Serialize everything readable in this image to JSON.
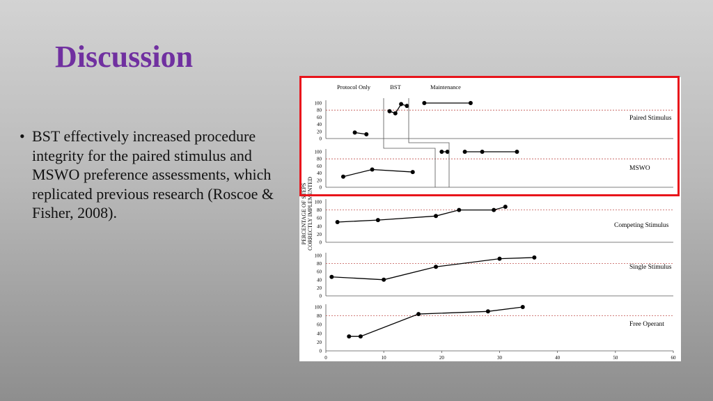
{
  "slide": {
    "title": "Discussion",
    "bullets": [
      "BST effectively increased procedure integrity for the paired stimulus and MSWO preference assessments, which replicated previous research (Roscoe & Fisher, 2008)."
    ]
  },
  "colors": {
    "title": "#7030a0",
    "highlight_box": "#e8141b",
    "criterion_line": "#c0504d",
    "data": "#000000"
  },
  "chart_data": {
    "type": "line",
    "phase_labels": [
      "Protocol Only",
      "BST",
      "Maintenance"
    ],
    "ylabel_lines": [
      "PERCENTAGE OF STEPS",
      "CORRECTLY IMPLEMENTED"
    ],
    "xlim": [
      0,
      60
    ],
    "x_ticks": [
      "0",
      "10",
      "20",
      "30",
      "40",
      "50",
      "60"
    ],
    "ylim": [
      0,
      100
    ],
    "y_ticks": [
      "0",
      "20",
      "40",
      "60",
      "80",
      "100"
    ],
    "criterion": 80,
    "panels": [
      {
        "name": "Paired Stimulus",
        "series": [
          {
            "x": [
              5,
              7
            ],
            "y": [
              17,
              12
            ]
          },
          {
            "x": [
              11,
              12,
              13,
              14
            ],
            "y": [
              77,
              71,
              97,
              92
            ]
          },
          {
            "x": [
              17,
              25
            ],
            "y": [
              100,
              100
            ]
          }
        ]
      },
      {
        "name": "MSWO",
        "series": [
          {
            "x": [
              3,
              8,
              15
            ],
            "y": [
              30,
              50,
              43
            ]
          },
          {
            "x": [
              20,
              21
            ],
            "y": [
              100,
              100
            ]
          },
          {
            "x": [
              24,
              27,
              33
            ],
            "y": [
              100,
              100,
              100
            ]
          }
        ]
      },
      {
        "name": "Competing Stimulus",
        "series": [
          {
            "x": [
              2,
              9,
              19,
              23,
              29,
              31
            ],
            "y": [
              50,
              55,
              65,
              80,
              80,
              88
            ]
          }
        ]
      },
      {
        "name": "Single Stimulus",
        "series": [
          {
            "x": [
              1,
              10,
              19,
              30,
              36
            ],
            "y": [
              47,
              40,
              72,
              92,
              95
            ]
          }
        ]
      },
      {
        "name": "Free Operant",
        "series": [
          {
            "x": [
              4,
              6,
              16,
              28,
              34
            ],
            "y": [
              33,
              33,
              84,
              90,
              100
            ]
          }
        ]
      }
    ]
  }
}
